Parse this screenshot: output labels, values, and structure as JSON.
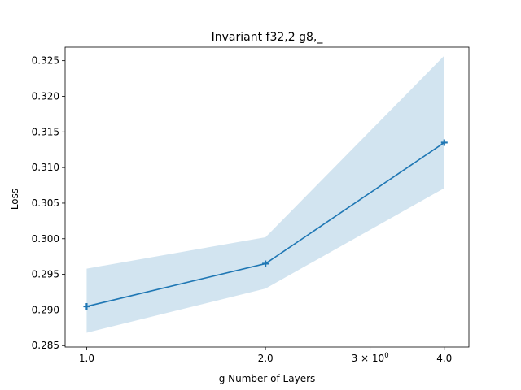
{
  "chart_data": {
    "type": "line",
    "title": "Invariant f32,2 g8,_",
    "xlabel": "g Number of Layers",
    "ylabel": "Loss",
    "x_scale": "log",
    "xlim": [
      0.92,
      4.4
    ],
    "ylim": [
      0.2848,
      0.3269
    ],
    "x_ticks": [
      {
        "value": 1.0,
        "label": "1.0"
      },
      {
        "value": 2.0,
        "label": "2.0"
      },
      {
        "value": 3.0,
        "label": "3 × 10",
        "exp": "0"
      },
      {
        "value": 4.0,
        "label": "4.0"
      }
    ],
    "y_ticks": [
      {
        "value": 0.285,
        "label": "0.285"
      },
      {
        "value": 0.29,
        "label": "0.290"
      },
      {
        "value": 0.295,
        "label": "0.295"
      },
      {
        "value": 0.3,
        "label": "0.300"
      },
      {
        "value": 0.305,
        "label": "0.305"
      },
      {
        "value": 0.31,
        "label": "0.310"
      },
      {
        "value": 0.315,
        "label": "0.315"
      },
      {
        "value": 0.32,
        "label": "0.320"
      },
      {
        "value": 0.325,
        "label": "0.325"
      }
    ],
    "series": [
      {
        "x": [
          1.0,
          2.0,
          4.0
        ],
        "y": [
          0.2905,
          0.2965,
          0.3135
        ],
        "lower": [
          0.2868,
          0.293,
          0.3071
        ],
        "upper": [
          0.2958,
          0.3002,
          0.3257
        ],
        "marker": "plus",
        "color": "#1f77b4",
        "band_color": "#1f77b4"
      }
    ],
    "grid": false
  }
}
